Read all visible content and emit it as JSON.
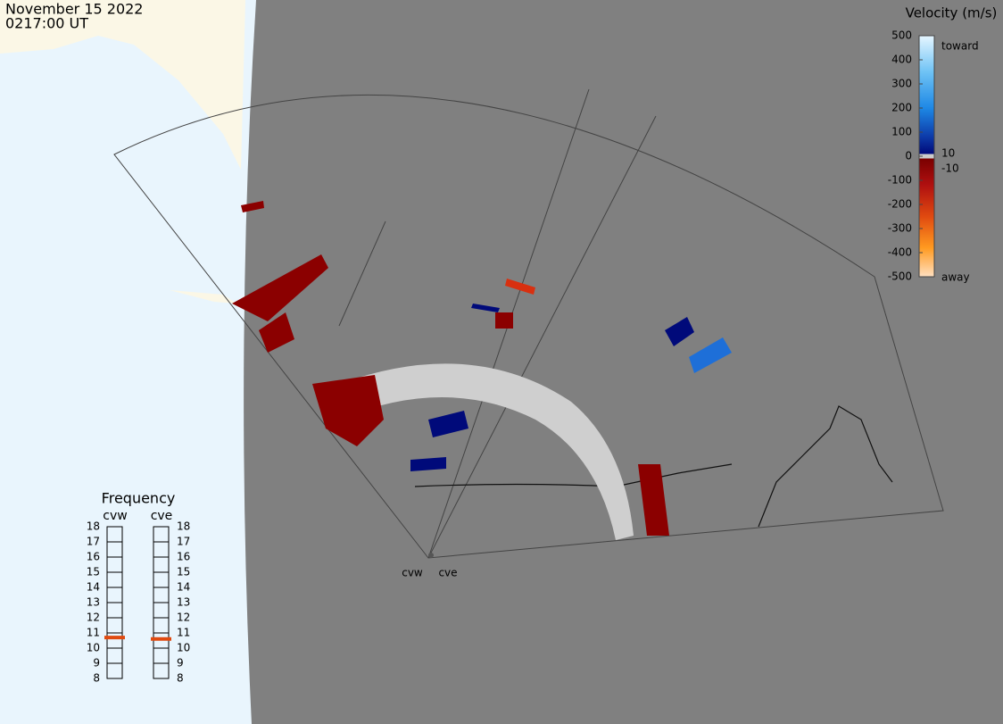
{
  "header": {
    "date": "November 15 2022",
    "time": "0217:00 UT"
  },
  "colorbar": {
    "title": "Velocity (m/s)",
    "ticks": [
      500,
      400,
      300,
      200,
      100,
      0,
      -100,
      -200,
      -300,
      -400,
      -500
    ],
    "toward": "toward",
    "away": "away",
    "upper_threshold": "10",
    "lower_threshold": "-10"
  },
  "frequency": {
    "title": "Frequency",
    "ticks": [
      18,
      17,
      16,
      15,
      14,
      13,
      12,
      11,
      10,
      9,
      8
    ],
    "radars": [
      {
        "name": "cvw",
        "value": 10.7
      },
      {
        "name": "cve",
        "value": 10.6
      }
    ]
  },
  "map": {
    "radar_labels": [
      "cvw",
      "cve"
    ]
  }
}
